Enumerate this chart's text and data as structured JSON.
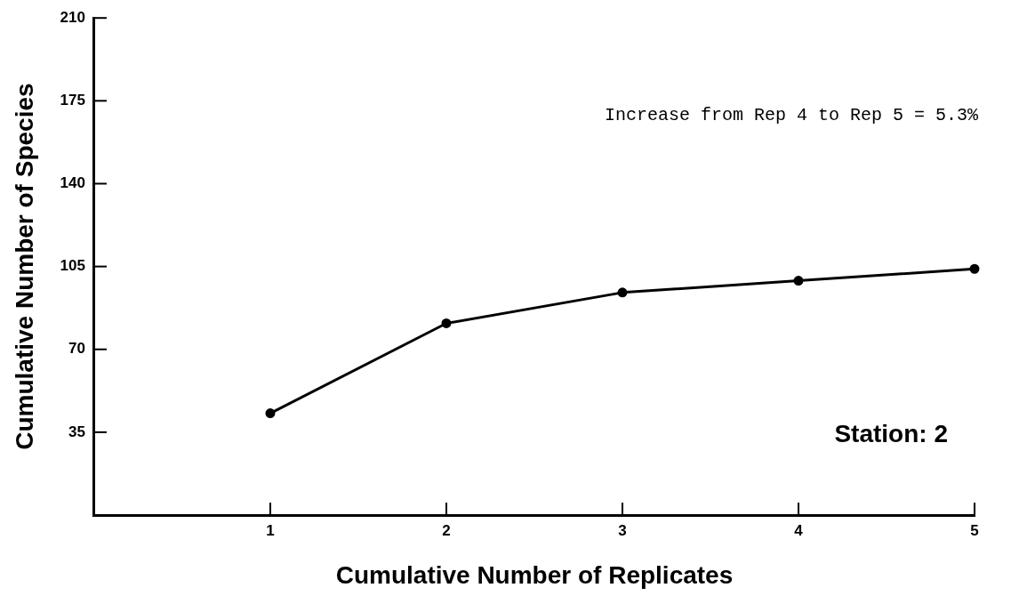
{
  "chart_data": {
    "type": "line",
    "xlabel": "Cumulative Number of Replicates",
    "ylabel": "Cumulative Number of Species",
    "x": [
      1,
      2,
      3,
      4,
      5
    ],
    "series": [
      {
        "color": "#000000",
        "values": [
          43,
          81,
          94,
          99,
          104
        ]
      }
    ],
    "xlim": [
      0,
      5
    ],
    "xticks": [
      1,
      2,
      3,
      4,
      5
    ],
    "ylim": [
      0,
      210
    ],
    "yticks": [
      35,
      70,
      105,
      140,
      175,
      210
    ],
    "marker": "circle",
    "line_style": "solid",
    "grid": false,
    "legend": false,
    "annotations": [
      "Increase from Rep 4 to Rep 5 = 5.3%",
      "Station: 2"
    ]
  }
}
